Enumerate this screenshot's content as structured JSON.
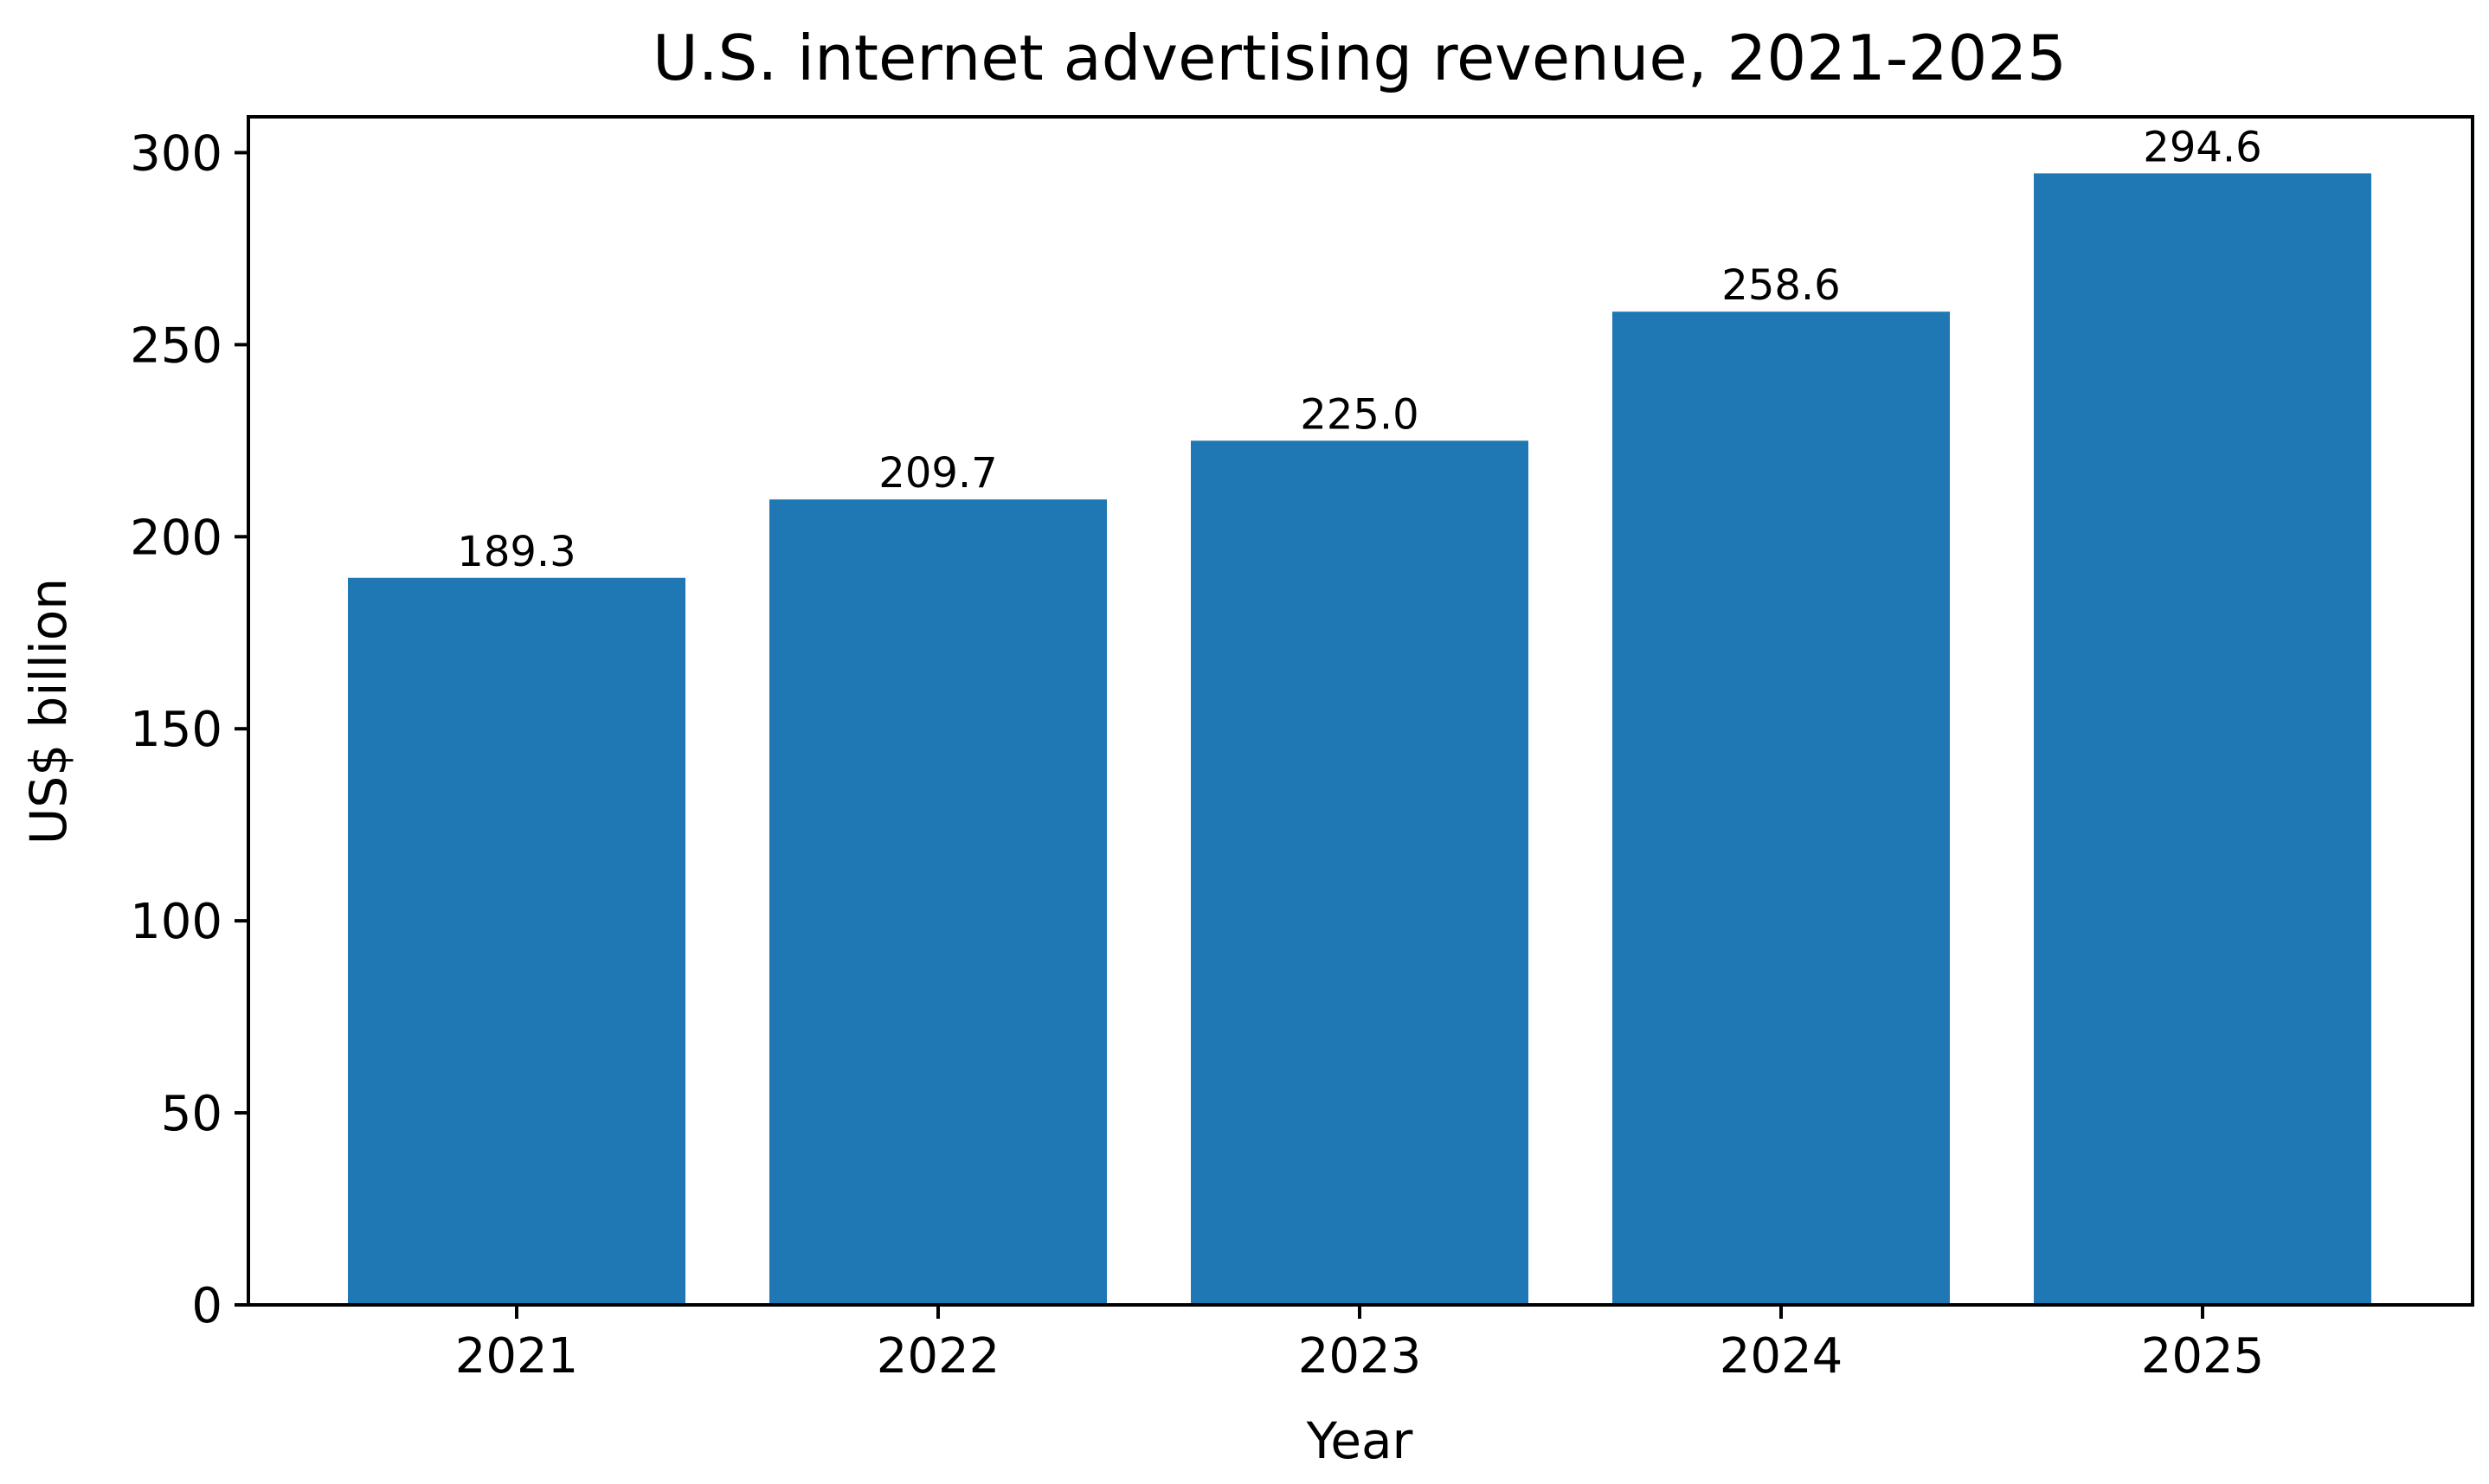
{
  "chart_data": {
    "type": "bar",
    "title": "U.S. internet advertising revenue, 2021-2025",
    "xlabel": "Year",
    "ylabel": "US$ billion",
    "categories": [
      "2021",
      "2022",
      "2023",
      "2024",
      "2025"
    ],
    "values": [
      189.3,
      209.7,
      225.0,
      258.6,
      294.6
    ],
    "value_labels": [
      "189.3",
      "209.7",
      "225.0",
      "258.6",
      "294.6"
    ],
    "yticks": [
      0,
      50,
      100,
      150,
      200,
      250,
      300
    ],
    "ylim": [
      0,
      309.33
    ],
    "grid": false,
    "bar_color": "#1f77b4"
  }
}
